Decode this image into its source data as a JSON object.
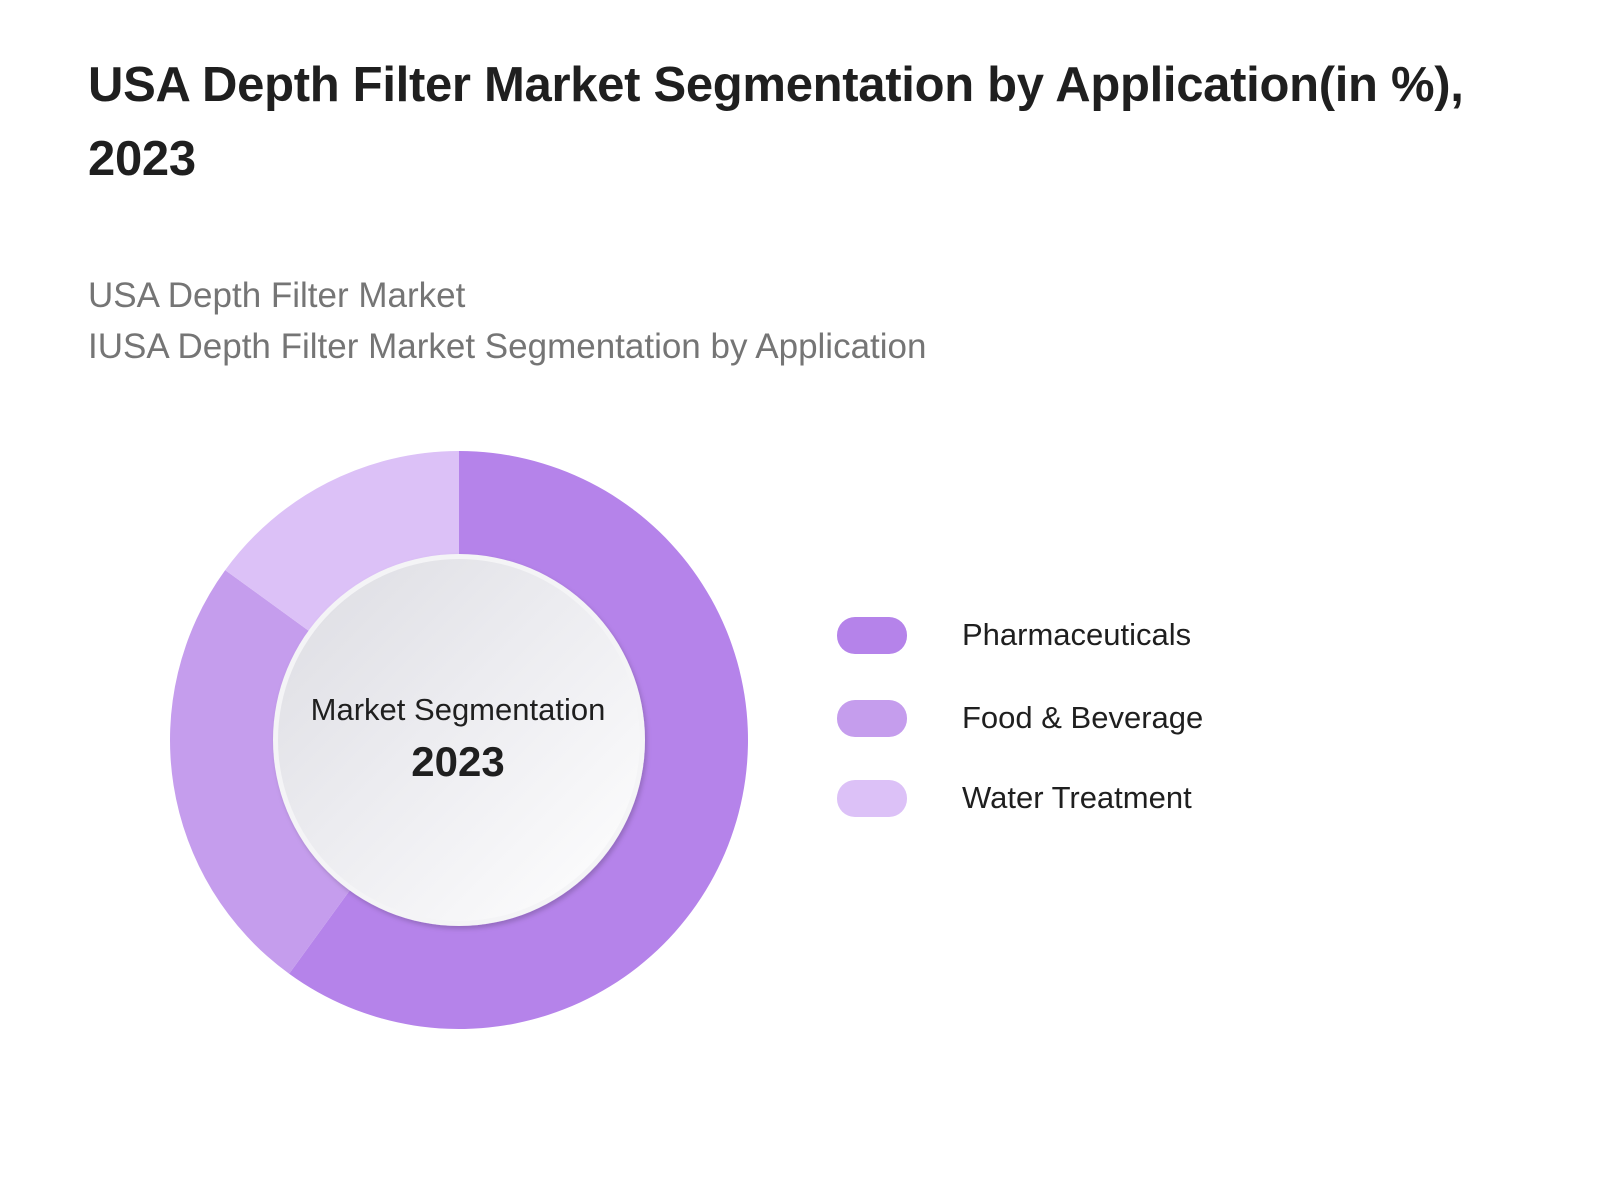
{
  "header": {
    "title": "USA Depth Filter Market Segmentation by Application(in %), 2023",
    "subtitle_line1": "USA Depth Filter Market",
    "subtitle_line2": "IUSA Depth Filter Market Segmentation by Application"
  },
  "center": {
    "label": "Market Segmentation",
    "year": "2023"
  },
  "legend": [
    {
      "label": "Pharmaceuticals",
      "color": "#b583ea"
    },
    {
      "label": "Food & Beverage",
      "color": "#c59ded"
    },
    {
      "label": "Water Treatment",
      "color": "#dcc1f7"
    }
  ],
  "chart_data": {
    "type": "pie",
    "variant": "donut",
    "title": "USA Depth Filter Market Segmentation by Application(in %), 2023",
    "subtitle": [
      "USA Depth Filter Market",
      "IUSA Depth Filter Market Segmentation by Application"
    ],
    "center_text": [
      "Market Segmentation",
      "2023"
    ],
    "categories": [
      "Pharmaceuticals",
      "Food & Beverage",
      "Water Treatment"
    ],
    "values": [
      60,
      25,
      15
    ],
    "unit": "%",
    "colors": [
      "#b583ea",
      "#c59ded",
      "#dcc1f7"
    ],
    "start_angle": "12 o'clock",
    "direction": "clockwise",
    "legend_position": "right",
    "data_labels": false
  }
}
